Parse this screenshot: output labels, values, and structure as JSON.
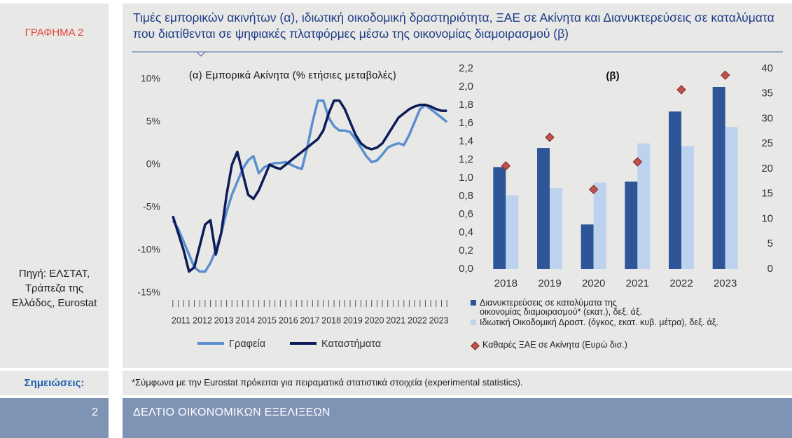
{
  "sidebar": {
    "label": "ΓΡΑΦΗΜΑ 2",
    "source": "Πηγή: ΕΛΣΤΑΤ, Τράπεζα της Ελλάδος, Eurostat"
  },
  "title": "Τιμές εμπορικών ακινήτων (α), ιδιωτική οικοδομική δραστηριότητα, ΞΑΕ σε Ακίνητα και Διανυκτερεύσεις σε καταλύματα που διατίθενται σε ψηφιακές πλατφόρμες μέσω της οικονομίας διαμοιρασμού (β)",
  "chart_data": [
    {
      "type": "line",
      "title": "(α) Εμπορικά Ακίνητα (% ετήσιες μεταβολές)",
      "categories": [
        "2011",
        null,
        null,
        null,
        "2012",
        null,
        null,
        null,
        "2013",
        null,
        null,
        null,
        "2014",
        null,
        null,
        null,
        "2015",
        null,
        null,
        null,
        "2016",
        null,
        null,
        null,
        "2017",
        null,
        null,
        null,
        "2018",
        null,
        null,
        null,
        "2019",
        null,
        null,
        null,
        "2020",
        null,
        null,
        null,
        "2021",
        null,
        null,
        null,
        "2022",
        null,
        null,
        null,
        "2023",
        null,
        null,
        null
      ],
      "series": [
        {
          "name": "Γραφεία",
          "color": "#5b8fd0",
          "values": [
            -6.5,
            -7.5,
            -9,
            -10.5,
            -12,
            -12.5,
            -12.5,
            -11.5,
            -10,
            -8,
            -5.5,
            -3.5,
            -2,
            -0.5,
            0.5,
            1,
            -1,
            -0.3,
            0,
            0.2,
            0.2,
            0.3,
            0,
            -0.3,
            -0.5,
            2,
            5,
            7.5,
            7.5,
            5.5,
            4.5,
            4,
            4,
            3.8,
            3,
            2,
            1,
            0.3,
            0.5,
            1.2,
            2,
            2.3,
            2.5,
            2.3,
            3.5,
            5,
            6.5,
            7,
            6.5,
            6,
            5.5,
            5
          ]
        },
        {
          "name": "Καταστήματα",
          "color": "#0c1b5a",
          "values": [
            -6,
            -8,
            -10,
            -12.5,
            -12,
            -9.5,
            -7,
            -6.5,
            -10.5,
            -8,
            -3.5,
            0,
            1.5,
            -1,
            -3.5,
            -4,
            -3,
            -1.5,
            0,
            -0.3,
            -0.5,
            0,
            0.5,
            1,
            1.5,
            2,
            2.5,
            3,
            4,
            6,
            7.5,
            7.5,
            6.5,
            5,
            3.5,
            2.5,
            2,
            1.8,
            2,
            2.5,
            3.5,
            4.5,
            5.5,
            6,
            6.5,
            6.8,
            7,
            7,
            6.8,
            6.5,
            6.3,
            6.3
          ]
        }
      ],
      "ylim": [
        -15,
        10
      ],
      "yticks": [
        {
          "value": -15,
          "label": "-15%"
        },
        {
          "value": -10,
          "label": "-10%"
        },
        {
          "value": -5,
          "label": "-5%"
        },
        {
          "value": 0,
          "label": "0%"
        },
        {
          "value": 5,
          "label": "5%"
        },
        {
          "value": 10,
          "label": "10%"
        }
      ],
      "grid": false
    },
    {
      "type": "bar",
      "title": "(β)",
      "categories": [
        "2018",
        "2019",
        "2020",
        "2021",
        "2022",
        "2023"
      ],
      "series": [
        {
          "name": "Διανυκτερεύσεις σε καταλύματα της οικονομίας διαμοιρασμού* (εκατ.), δεξ. άξ.",
          "color": "#2e5597",
          "values": [
            1.12,
            1.33,
            0.49,
            0.96,
            1.73,
            2.0
          ]
        },
        {
          "name": "Ιδιωτική Οικοδομική Δραστ. (όγκος, εκατ. κυβ. μέτρα), δεξ. άξ.",
          "color": "#bdd2ee",
          "values": [
            0.81,
            0.89,
            0.95,
            1.38,
            1.35,
            1.56
          ]
        },
        {
          "name": "Καθαρές ΞΑΕ σε Ακίνητα (Ευρώ δισ.)",
          "color": "#c0504d",
          "type": "scatter",
          "axis": "y2",
          "values": [
            20.6,
            26.3,
            15.9,
            21.4,
            35.8,
            38.7
          ]
        }
      ],
      "ylim": [
        0,
        2.2
      ],
      "yticks": [
        {
          "value": 0,
          "label": "0,0"
        },
        {
          "value": 0.2,
          "label": "0,2"
        },
        {
          "value": 0.4,
          "label": "0,4"
        },
        {
          "value": 0.6,
          "label": "0,6"
        },
        {
          "value": 0.8,
          "label": "0,8"
        },
        {
          "value": 1.0,
          "label": "1,0"
        },
        {
          "value": 1.2,
          "label": "1,2"
        },
        {
          "value": 1.4,
          "label": "1,4"
        },
        {
          "value": 1.6,
          "label": "1,6"
        },
        {
          "value": 1.8,
          "label": "1,8"
        },
        {
          "value": 2.0,
          "label": "2,0"
        },
        {
          "value": 2.2,
          "label": "2,2"
        }
      ],
      "y2lim": [
        0,
        40
      ],
      "y2ticks": [
        0,
        5,
        10,
        15,
        20,
        25,
        30,
        35,
        40
      ],
      "grid": false
    }
  ],
  "notes": {
    "label": "Σημειώσεις:",
    "text": "*Σύμφωνα με την Eurostat πρόκειται για πειραματικά στατιστικά στοιχεία (experimental statistics)."
  },
  "footer": {
    "page": "2",
    "text": "ΔΕΛΤΙΟ ΟΙΚΟΝΟΜΙΚΩΝ ΕΞΕΛΙΞΕΩΝ"
  }
}
